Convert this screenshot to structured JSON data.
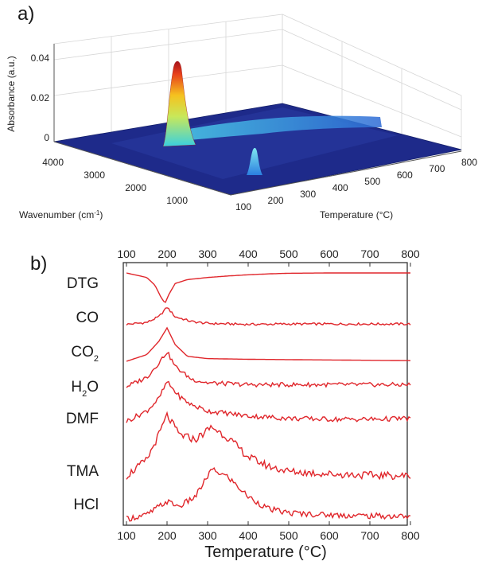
{
  "panel_a": {
    "label": "a)",
    "zlabel": "Absorbance (a.u.)",
    "ylabel_base": "Wavenumber (cm",
    "ylabel_sup": "-1",
    "ylabel_end": ")",
    "xlabel": "Temperature (°C)",
    "zticks": [
      "0",
      "0.02",
      "0.04"
    ],
    "yticks": [
      "4000",
      "3000",
      "2000",
      "1000"
    ],
    "xticks": [
      "100",
      "200",
      "300",
      "400",
      "500",
      "600",
      "700",
      "800"
    ]
  },
  "panel_b": {
    "label": "b)",
    "xlabel": "Temperature (°C)",
    "xticks": [
      "100",
      "200",
      "300",
      "400",
      "500",
      "600",
      "700",
      "800"
    ]
  },
  "colors": {
    "trace": "#e0262b",
    "surface": "#1e2a8a",
    "frame": "#333333"
  },
  "chart_data": [
    {
      "type": "area",
      "title": "",
      "surface_3d": true,
      "xlabel": "Temperature (°C)",
      "ylabel": "Wavenumber (cm-1)",
      "zlabel": "Absorbance (a.u.)",
      "xlim": [
        100,
        800
      ],
      "ylim": [
        500,
        4500
      ],
      "zlim": [
        0,
        0.045
      ],
      "peaks": [
        {
          "temperature": 200,
          "wavenumber": 2350,
          "absorbance": 0.042
        },
        {
          "temperature": 200,
          "wavenumber": 1700,
          "absorbance": 0.008
        },
        {
          "temperature": 320,
          "wavenumber": 750,
          "absorbance": 0.006
        }
      ]
    },
    {
      "type": "line",
      "title": "",
      "xlabel": "Temperature (°C)",
      "ylabel": "",
      "xlim": [
        100,
        800
      ],
      "y_units": "relative (stacked, offset)",
      "series": [
        {
          "name": "DTG",
          "label_html": "DTG",
          "baseline": 0,
          "points": [
            [
              100,
              0
            ],
            [
              150,
              -0.15
            ],
            [
              170,
              -0.4
            ],
            [
              185,
              -0.8
            ],
            [
              195,
              -1.0
            ],
            [
              205,
              -0.7
            ],
            [
              220,
              -0.35
            ],
            [
              250,
              -0.22
            ],
            [
              300,
              -0.15
            ],
            [
              350,
              -0.1
            ],
            [
              400,
              -0.06
            ],
            [
              450,
              -0.03
            ],
            [
              500,
              -0.01
            ],
            [
              600,
              0
            ],
            [
              800,
              0
            ]
          ]
        },
        {
          "name": "CO",
          "label_html": "CO",
          "points": [
            [
              100,
              0.1
            ],
            [
              150,
              0.2
            ],
            [
              180,
              0.5
            ],
            [
              200,
              1.0
            ],
            [
              220,
              0.5
            ],
            [
              260,
              0.25
            ],
            [
              300,
              0.15
            ],
            [
              400,
              0.1
            ],
            [
              500,
              0.12
            ],
            [
              600,
              0.12
            ],
            [
              700,
              0.12
            ],
            [
              800,
              0.12
            ]
          ]
        },
        {
          "name": "CO2",
          "label_html": "CO<tspan baseline-shift='sub' font-size='11'>2</tspan>",
          "points": [
            [
              100,
              0
            ],
            [
              150,
              0.2
            ],
            [
              180,
              0.6
            ],
            [
              200,
              1.0
            ],
            [
              220,
              0.5
            ],
            [
              250,
              0.15
            ],
            [
              300,
              0.08
            ],
            [
              400,
              0.06
            ],
            [
              500,
              0.05
            ],
            [
              600,
              0.04
            ],
            [
              700,
              0.03
            ],
            [
              800,
              0.02
            ]
          ]
        },
        {
          "name": "H2O",
          "label_html": "H<tspan baseline-shift='sub' font-size='11'>2</tspan>O",
          "points": [
            [
              100,
              0.05
            ],
            [
              150,
              0.3
            ],
            [
              180,
              0.7
            ],
            [
              200,
              1.0
            ],
            [
              220,
              0.6
            ],
            [
              260,
              0.25
            ],
            [
              300,
              0.15
            ],
            [
              400,
              0.1
            ],
            [
              500,
              0.1
            ],
            [
              600,
              0.1
            ],
            [
              700,
              0.1
            ],
            [
              800,
              0.1
            ]
          ]
        },
        {
          "name": "DMF",
          "label_html": "DMF",
          "points": [
            [
              100,
              0.05
            ],
            [
              150,
              0.3
            ],
            [
              180,
              0.6
            ],
            [
              200,
              1.0
            ],
            [
              230,
              0.65
            ],
            [
              260,
              0.45
            ],
            [
              300,
              0.3
            ],
            [
              400,
              0.18
            ],
            [
              500,
              0.12
            ],
            [
              600,
              0.1
            ],
            [
              700,
              0.1
            ],
            [
              800,
              0.12
            ]
          ]
        },
        {
          "name": "TMA",
          "label_html": "TMA",
          "points": [
            [
              100,
              0.05
            ],
            [
              150,
              0.3
            ],
            [
              180,
              0.7
            ],
            [
              200,
              1.0
            ],
            [
              230,
              0.7
            ],
            [
              270,
              0.62
            ],
            [
              310,
              0.82
            ],
            [
              350,
              0.65
            ],
            [
              400,
              0.35
            ],
            [
              450,
              0.2
            ],
            [
              500,
              0.12
            ],
            [
              600,
              0.08
            ],
            [
              700,
              0.06
            ],
            [
              800,
              0.05
            ]
          ]
        },
        {
          "name": "HCl",
          "label_html": "HCl",
          "points": [
            [
              100,
              0.0
            ],
            [
              150,
              0.08
            ],
            [
              180,
              0.25
            ],
            [
              200,
              0.35
            ],
            [
              230,
              0.25
            ],
            [
              270,
              0.45
            ],
            [
              310,
              1.0
            ],
            [
              350,
              0.85
            ],
            [
              400,
              0.45
            ],
            [
              450,
              0.2
            ],
            [
              500,
              0.12
            ],
            [
              600,
              0.08
            ],
            [
              700,
              0.06
            ],
            [
              800,
              0.05
            ]
          ]
        }
      ]
    }
  ]
}
